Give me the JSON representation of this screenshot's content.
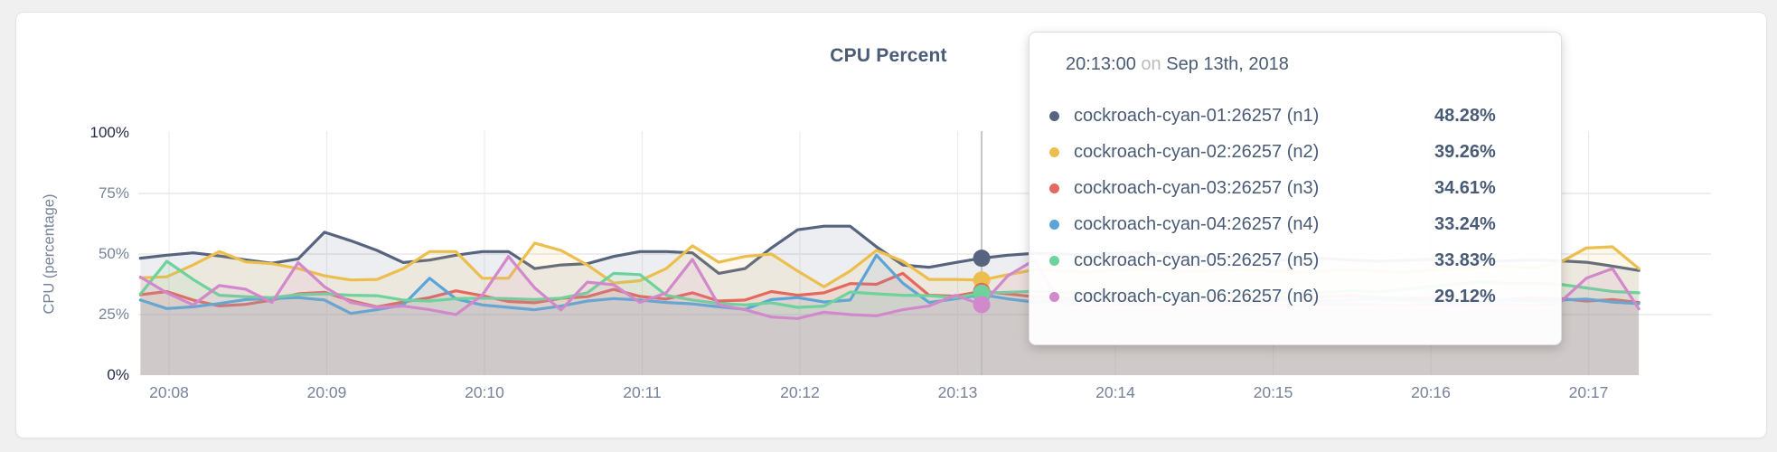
{
  "chart": {
    "title": "CPU Percent",
    "y_axis": {
      "title": "CPU (percentage)",
      "ticks": [
        "100%",
        "75%",
        "50%",
        "25%",
        "0%"
      ]
    },
    "x_axis": {
      "ticks": [
        "20:08",
        "20:09",
        "20:10",
        "20:11",
        "20:12",
        "20:13",
        "20:14",
        "20:15",
        "20:16",
        "20:17"
      ]
    }
  },
  "tooltip": {
    "time": "20:13:00",
    "conj": "on",
    "date": "Sep 13th, 2018",
    "rows": [
      {
        "name": "cockroach-cyan-01:26257 (n1)",
        "value": "48.28%",
        "color": "#576480"
      },
      {
        "name": "cockroach-cyan-02:26257 (n2)",
        "value": "39.26%",
        "color": "#ecbe4d"
      },
      {
        "name": "cockroach-cyan-03:26257 (n3)",
        "value": "34.61%",
        "color": "#e5685f"
      },
      {
        "name": "cockroach-cyan-04:26257 (n4)",
        "value": "33.24%",
        "color": "#5ba4da"
      },
      {
        "name": "cockroach-cyan-05:26257 (n5)",
        "value": "33.83%",
        "color": "#6dd29b"
      },
      {
        "name": "cockroach-cyan-06:26257 (n6)",
        "value": "29.12%",
        "color": "#d189cc"
      }
    ]
  },
  "chart_data": {
    "type": "line",
    "title": "CPU Percent",
    "xlabel": "",
    "ylabel": "CPU (percentage)",
    "ylim": [
      0,
      100
    ],
    "grid": true,
    "x_ticks": [
      "20:08",
      "20:09",
      "20:10",
      "20:11",
      "20:12",
      "20:13",
      "20:14",
      "20:15",
      "20:16",
      "20:17"
    ],
    "start_time": "20:07:49",
    "interval_seconds": 10,
    "hover_index": 32,
    "hover_time": "20:13:00",
    "hover_date": "Sep 13th, 2018",
    "area_fill_opacity": 0.11,
    "series": [
      {
        "name": "cockroach-cyan-01:26257 (n1)",
        "color": "#576480",
        "hover_value": 48.28,
        "values": [
          48.3,
          49.5,
          50.5,
          49.2,
          47.6,
          46.2,
          48.0,
          59.0,
          55.5,
          51.5,
          46.5,
          47.5,
          49.5,
          51.0,
          51.0,
          44.0,
          45.5,
          46.0,
          49.0,
          51.0,
          51.0,
          50.5,
          42.0,
          44.0,
          52.5,
          60.0,
          61.5,
          61.5,
          53.0,
          45.5,
          44.5,
          46.5,
          48.28,
          49.5,
          50.3,
          50.0,
          49.6,
          50.2,
          50.6,
          50.2,
          49.4,
          48.6,
          48.0,
          47.4,
          47.8,
          48.2,
          47.6,
          47.0,
          47.4,
          47.8,
          47.2,
          46.8,
          47.2,
          47.6,
          47.2,
          46.6,
          45.0,
          43.2
        ]
      },
      {
        "name": "cockroach-cyan-02:26257 (n2)",
        "color": "#ecbe4d",
        "hover_value": 39.26,
        "values": [
          40.2,
          40.6,
          45.5,
          51.0,
          46.8,
          46.0,
          44.0,
          41.0,
          39.3,
          39.5,
          44.0,
          51.0,
          51.0,
          40.0,
          40.0,
          54.5,
          51.5,
          45.5,
          38.0,
          39.0,
          44.0,
          53.4,
          46.6,
          49.0,
          50.0,
          43.0,
          36.5,
          43.0,
          51.5,
          47.0,
          39.5,
          39.5,
          39.26,
          41.5,
          43.5,
          43.0,
          42.6,
          43.2,
          43.8,
          43.4,
          42.8,
          43.2,
          43.6,
          43.0,
          42.6,
          43.0,
          43.4,
          43.0,
          42.6,
          43.2,
          43.8,
          44.4,
          45.0,
          44.2,
          46.5,
          52.5,
          53.0,
          44.0
        ]
      },
      {
        "name": "cockroach-cyan-03:26257 (n3)",
        "color": "#e5685f",
        "hover_value": 34.61,
        "values": [
          33.2,
          34.5,
          31.0,
          28.6,
          29.2,
          31.0,
          33.6,
          34.2,
          30.8,
          28.2,
          30.2,
          32.0,
          34.8,
          32.8,
          30.4,
          29.9,
          31.7,
          32.4,
          35.4,
          32.5,
          31.4,
          34.0,
          30.6,
          31.0,
          34.5,
          33.0,
          34.0,
          37.8,
          37.5,
          42.0,
          33.0,
          32.6,
          34.61,
          33.5,
          32.4,
          31.8,
          32.2,
          33.0,
          32.6,
          32.0,
          31.6,
          32.2,
          32.8,
          32.2,
          31.8,
          32.4,
          32.8,
          32.2,
          31.6,
          32.0,
          31.2,
          30.6,
          31.2,
          32.0,
          31.6,
          30.6,
          31.2,
          30.0
        ]
      },
      {
        "name": "cockroach-cyan-04:26257 (n4)",
        "color": "#5ba4da",
        "hover_value": 33.24,
        "values": [
          31.0,
          27.5,
          28.2,
          29.6,
          31.2,
          31.6,
          32.0,
          31.0,
          25.5,
          27.0,
          29.0,
          40.0,
          31.5,
          29.0,
          28.0,
          27.0,
          28.5,
          30.6,
          31.6,
          31.0,
          30.0,
          29.4,
          28.2,
          27.2,
          31.2,
          32.0,
          30.2,
          31.0,
          49.5,
          38.0,
          30.0,
          31.5,
          33.24,
          31.5,
          30.2,
          30.6,
          31.0,
          30.6,
          31.2,
          31.6,
          31.0,
          30.6,
          31.0,
          31.4,
          31.0,
          30.6,
          31.0,
          31.4,
          31.0,
          30.6,
          29.6,
          30.2,
          31.0,
          30.6,
          31.0,
          31.4,
          30.2,
          29.5
        ]
      },
      {
        "name": "cockroach-cyan-05:26257 (n5)",
        "color": "#6dd29b",
        "hover_value": 33.83,
        "values": [
          33.5,
          47.0,
          39.5,
          33.0,
          32.4,
          32.0,
          33.2,
          33.6,
          33.0,
          32.8,
          31.0,
          30.6,
          31.6,
          31.8,
          31.6,
          31.2,
          31.8,
          34.0,
          42.0,
          41.5,
          33.0,
          31.0,
          29.6,
          29.0,
          29.9,
          28.0,
          28.5,
          34.3,
          33.6,
          33.0,
          32.8,
          32.0,
          33.83,
          34.2,
          34.6,
          34.0,
          33.6,
          34.2,
          34.6,
          34.2,
          33.8,
          34.2,
          34.6,
          34.2,
          33.8,
          34.2,
          34.8,
          34.4,
          35.2,
          36.4,
          37.6,
          38.4,
          38.0,
          38.0,
          37.5,
          36.0,
          34.5,
          34.0
        ]
      },
      {
        "name": "cockroach-cyan-06:26257 (n6)",
        "color": "#d189cc",
        "hover_value": 29.12,
        "values": [
          40.5,
          34.0,
          29.0,
          37.0,
          35.5,
          30.0,
          46.5,
          36.5,
          30.0,
          28.0,
          28.5,
          27.0,
          25.0,
          33.0,
          49.0,
          36.0,
          26.9,
          38.4,
          37.3,
          30.0,
          34.0,
          47.8,
          29.0,
          27.0,
          24.0,
          23.4,
          26.0,
          25.0,
          24.5,
          27.0,
          28.6,
          33.0,
          29.12,
          41.0,
          47.5,
          30.0,
          28.4,
          29.0,
          29.6,
          29.0,
          28.6,
          29.0,
          29.6,
          29.0,
          28.6,
          29.2,
          29.6,
          29.0,
          28.6,
          29.2,
          28.6,
          29.0,
          29.0,
          28.5,
          30.0,
          40.0,
          44.0,
          27.4
        ]
      }
    ]
  }
}
